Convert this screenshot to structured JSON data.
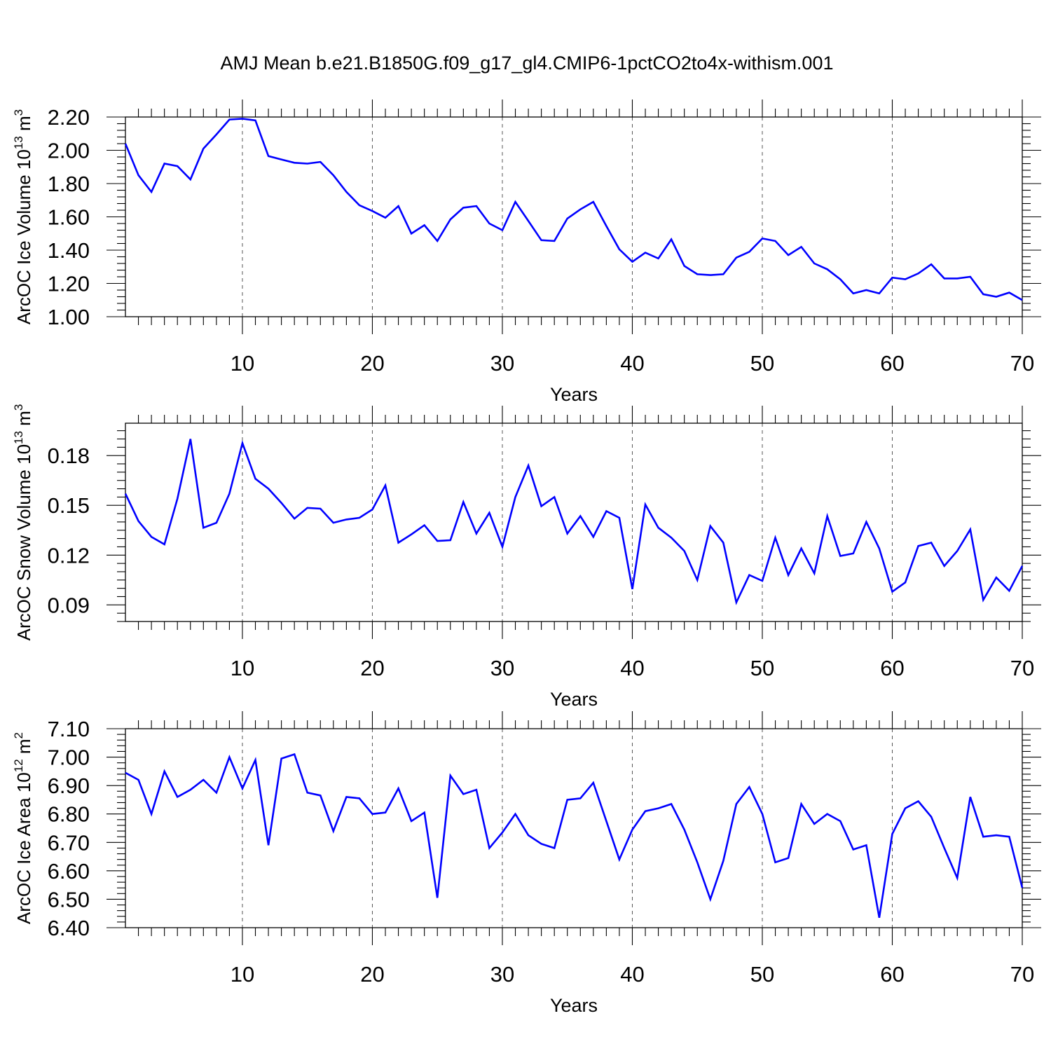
{
  "title": "AMJ Mean b.e21.B1850G.f09_g17_gl4.CMIP6-1pctCO2to4x-withism.001",
  "chart_data": [
    {
      "type": "line",
      "ylabel": "ArcOC Ice Volume 10",
      "ylabel_exp": "13",
      "ylabel_unit": " m",
      "ylabel_unit_exp": "3",
      "xlabel": "Years",
      "xlim": [
        1,
        70
      ],
      "ylim": [
        1.0,
        2.2
      ],
      "x_major_ticks": [
        10,
        20,
        30,
        40,
        50,
        60,
        70
      ],
      "x_tick_labels": [
        "10",
        "20",
        "30",
        "40",
        "50",
        "60",
        "70"
      ],
      "y_major_ticks": [
        1.0,
        1.2,
        1.4,
        1.6,
        1.8,
        2.0,
        2.2
      ],
      "y_tick_labels": [
        "1.00",
        "1.20",
        "1.40",
        "1.60",
        "1.80",
        "2.00",
        "2.20"
      ],
      "y_minor_step": 0.04,
      "grid": "vertical dashed at major x ticks",
      "color": "#0000ff",
      "x": [
        1,
        2,
        3,
        4,
        5,
        6,
        7,
        8,
        9,
        10,
        11,
        12,
        13,
        14,
        15,
        16,
        17,
        18,
        19,
        20,
        21,
        22,
        23,
        24,
        25,
        26,
        27,
        28,
        29,
        30,
        31,
        32,
        33,
        34,
        35,
        36,
        37,
        38,
        39,
        40,
        41,
        42,
        43,
        44,
        45,
        46,
        47,
        48,
        49,
        50,
        51,
        52,
        53,
        54,
        55,
        56,
        57,
        58,
        59,
        60,
        61,
        62,
        63,
        64,
        65,
        66,
        67,
        68,
        69,
        70
      ],
      "values": [
        2.04,
        1.85,
        1.75,
        1.92,
        1.905,
        1.825,
        2.01,
        2.095,
        2.185,
        2.19,
        2.18,
        1.965,
        1.945,
        1.925,
        1.92,
        1.93,
        1.85,
        1.75,
        1.67,
        1.635,
        1.595,
        1.665,
        1.5,
        1.55,
        1.455,
        1.585,
        1.655,
        1.665,
        1.56,
        1.52,
        1.69,
        1.575,
        1.46,
        1.455,
        1.59,
        1.645,
        1.69,
        1.545,
        1.405,
        1.33,
        1.385,
        1.35,
        1.465,
        1.305,
        1.255,
        1.25,
        1.255,
        1.355,
        1.39,
        1.47,
        1.455,
        1.37,
        1.42,
        1.32,
        1.285,
        1.225,
        1.14,
        1.16,
        1.14,
        1.235,
        1.225,
        1.26,
        1.315,
        1.23,
        1.23,
        1.24,
        1.135,
        1.12,
        1.145,
        1.1
      ]
    },
    {
      "type": "line",
      "ylabel": "ArcOC Snow Volume 10",
      "ylabel_exp": "13",
      "ylabel_unit": " m",
      "ylabel_unit_exp": "3",
      "xlabel": "Years",
      "xlim": [
        1,
        70
      ],
      "ylim": [
        0.08,
        0.1995
      ],
      "x_major_ticks": [
        10,
        20,
        30,
        40,
        50,
        60,
        70
      ],
      "x_tick_labels": [
        "10",
        "20",
        "30",
        "40",
        "50",
        "60",
        "70"
      ],
      "y_major_ticks": [
        0.09,
        0.12,
        0.15,
        0.18
      ],
      "y_tick_labels": [
        "0.09",
        "0.12",
        "0.15",
        "0.18"
      ],
      "y_minor_step": 0.005,
      "grid": "vertical dashed at major x ticks",
      "color": "#0000ff",
      "x": [
        1,
        2,
        3,
        4,
        5,
        6,
        7,
        8,
        9,
        10,
        11,
        12,
        13,
        14,
        15,
        16,
        17,
        18,
        19,
        20,
        21,
        22,
        23,
        24,
        25,
        26,
        27,
        28,
        29,
        30,
        31,
        32,
        33,
        34,
        35,
        36,
        37,
        38,
        39,
        40,
        41,
        42,
        43,
        44,
        45,
        46,
        47,
        48,
        49,
        50,
        51,
        52,
        53,
        54,
        55,
        56,
        57,
        58,
        59,
        60,
        61,
        62,
        63,
        64,
        65,
        66,
        67,
        68,
        69,
        70
      ],
      "values": [
        0.157,
        0.1405,
        0.131,
        0.1265,
        0.154,
        0.19,
        0.1365,
        0.1395,
        0.157,
        0.1875,
        0.166,
        0.16,
        0.1515,
        0.142,
        0.1485,
        0.148,
        0.1395,
        0.1415,
        0.1425,
        0.1475,
        0.162,
        0.1275,
        0.1325,
        0.138,
        0.1285,
        0.129,
        0.152,
        0.133,
        0.1455,
        0.125,
        0.155,
        0.174,
        0.1495,
        0.155,
        0.133,
        0.1435,
        0.131,
        0.1465,
        0.1425,
        0.0995,
        0.1505,
        0.1365,
        0.1305,
        0.1225,
        0.105,
        0.1375,
        0.1275,
        0.0915,
        0.108,
        0.1045,
        0.1305,
        0.108,
        0.124,
        0.109,
        0.1435,
        0.1195,
        0.121,
        0.14,
        0.124,
        0.098,
        0.1035,
        0.1255,
        0.1275,
        0.1135,
        0.1225,
        0.1355,
        0.093,
        0.1065,
        0.0985,
        0.1135
      ]
    },
    {
      "type": "line",
      "ylabel": "ArcOC Ice Area 10",
      "ylabel_exp": "12",
      "ylabel_unit": " m",
      "ylabel_unit_exp": "2",
      "xlabel": "Years",
      "xlim": [
        1,
        70
      ],
      "ylim": [
        6.4,
        7.1
      ],
      "x_major_ticks": [
        10,
        20,
        30,
        40,
        50,
        60,
        70
      ],
      "x_tick_labels": [
        "10",
        "20",
        "30",
        "40",
        "50",
        "60",
        "70"
      ],
      "y_major_ticks": [
        6.4,
        6.5,
        6.6,
        6.7,
        6.8,
        6.9,
        7.0,
        7.1
      ],
      "y_tick_labels": [
        "6.40",
        "6.50",
        "6.60",
        "6.70",
        "6.80",
        "6.90",
        "7.00",
        "7.10"
      ],
      "y_minor_step": 0.02,
      "grid": "vertical dashed at major x ticks",
      "color": "#0000ff",
      "x": [
        1,
        2,
        3,
        4,
        5,
        6,
        7,
        8,
        9,
        10,
        11,
        12,
        13,
        14,
        15,
        16,
        17,
        18,
        19,
        20,
        21,
        22,
        23,
        24,
        25,
        26,
        27,
        28,
        29,
        30,
        31,
        32,
        33,
        34,
        35,
        36,
        37,
        38,
        39,
        40,
        41,
        42,
        43,
        44,
        45,
        46,
        47,
        48,
        49,
        50,
        51,
        52,
        53,
        54,
        55,
        56,
        57,
        58,
        59,
        60,
        61,
        62,
        63,
        64,
        65,
        66,
        67,
        68,
        69,
        70
      ],
      "values": [
        6.945,
        6.92,
        6.8,
        6.95,
        6.86,
        6.885,
        6.92,
        6.875,
        7.0,
        6.89,
        6.99,
        6.69,
        6.995,
        7.01,
        6.875,
        6.865,
        6.74,
        6.86,
        6.855,
        6.8,
        6.805,
        6.89,
        6.775,
        6.805,
        6.505,
        6.935,
        6.87,
        6.885,
        6.68,
        6.735,
        6.8,
        6.725,
        6.695,
        6.68,
        6.85,
        6.855,
        6.91,
        6.775,
        6.64,
        6.745,
        6.81,
        6.82,
        6.835,
        6.745,
        6.63,
        6.5,
        6.635,
        6.835,
        6.895,
        6.8,
        6.63,
        6.645,
        6.835,
        6.765,
        6.8,
        6.775,
        6.675,
        6.69,
        6.435,
        6.73,
        6.82,
        6.845,
        6.79,
        6.68,
        6.575,
        6.86,
        6.72,
        6.725,
        6.72,
        6.54
      ]
    }
  ]
}
